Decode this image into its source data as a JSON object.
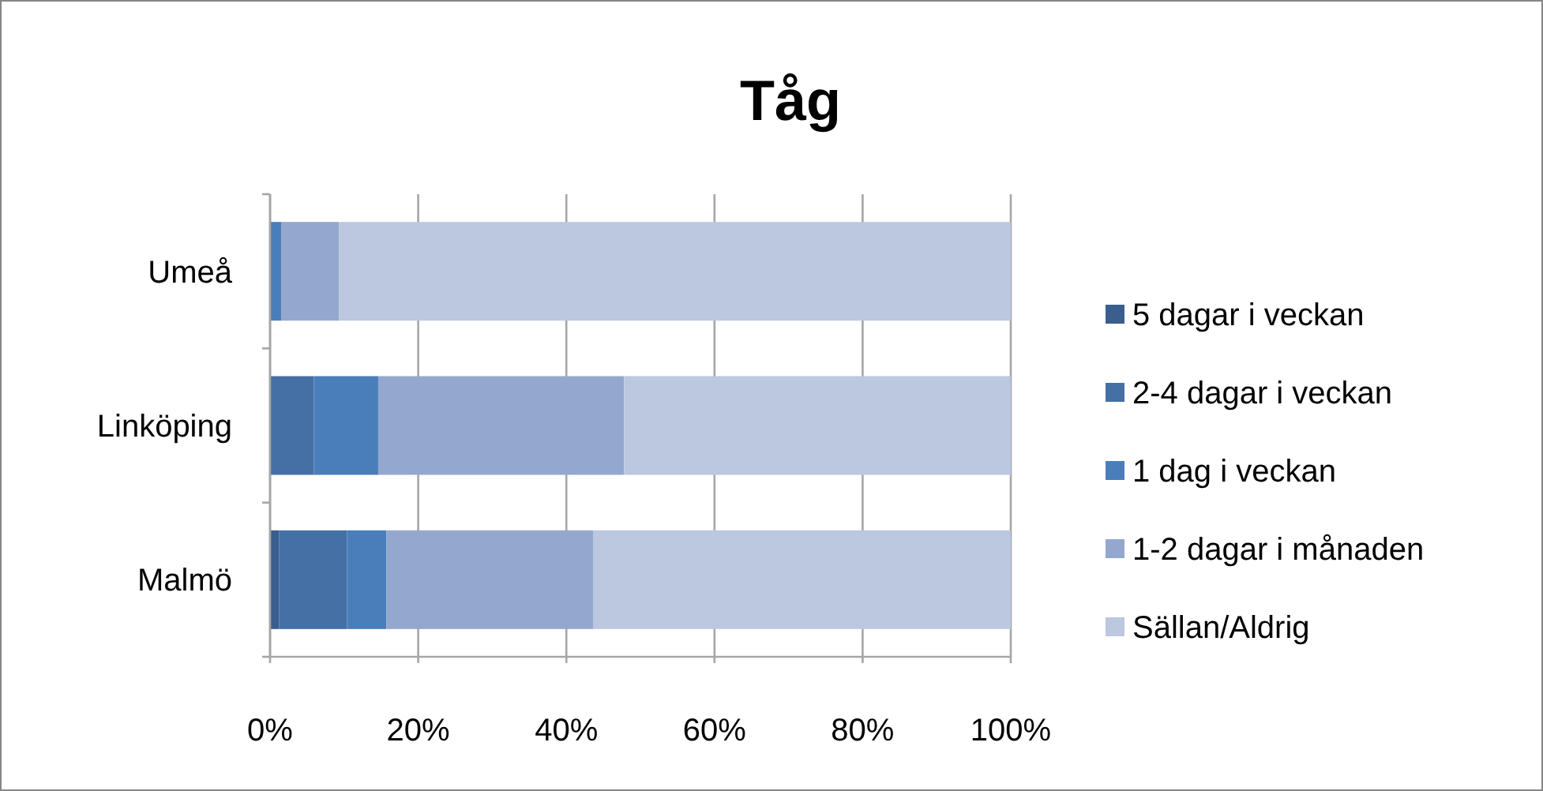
{
  "chart_data": {
    "type": "bar",
    "title": "Tåg",
    "orientation": "horizontal",
    "stacked": true,
    "categories": [
      "Umeå",
      "Linköping",
      "Malmö"
    ],
    "series": [
      {
        "name": "5 dagar i veckan",
        "color": "#3a5f8f",
        "values": [
          0,
          0,
          1.2
        ]
      },
      {
        "name": "2-4 dagar i veckan",
        "color": "#4470a5",
        "values": [
          0,
          5.9,
          9.2
        ]
      },
      {
        "name": "1 dag i veckan",
        "color": "#4a7ebb",
        "values": [
          1.5,
          8.7,
          5.3
        ]
      },
      {
        "name": "1-2 dagar i månaden",
        "color": "#94a8cf",
        "values": [
          7.8,
          33.2,
          27.9
        ]
      },
      {
        "name": "Sällan/Aldrig",
        "color": "#bcc7e0",
        "values": [
          90.7,
          52.2,
          56.4
        ]
      }
    ],
    "xlim": [
      0,
      100
    ],
    "xticks": [
      {
        "value": 0,
        "label": "0%"
      },
      {
        "value": 20,
        "label": "20%"
      },
      {
        "value": 40,
        "label": "40%"
      },
      {
        "value": 60,
        "label": "60%"
      },
      {
        "value": 80,
        "label": "80%"
      },
      {
        "value": 100,
        "label": "100%"
      }
    ],
    "grid": "x",
    "legend": "right"
  }
}
